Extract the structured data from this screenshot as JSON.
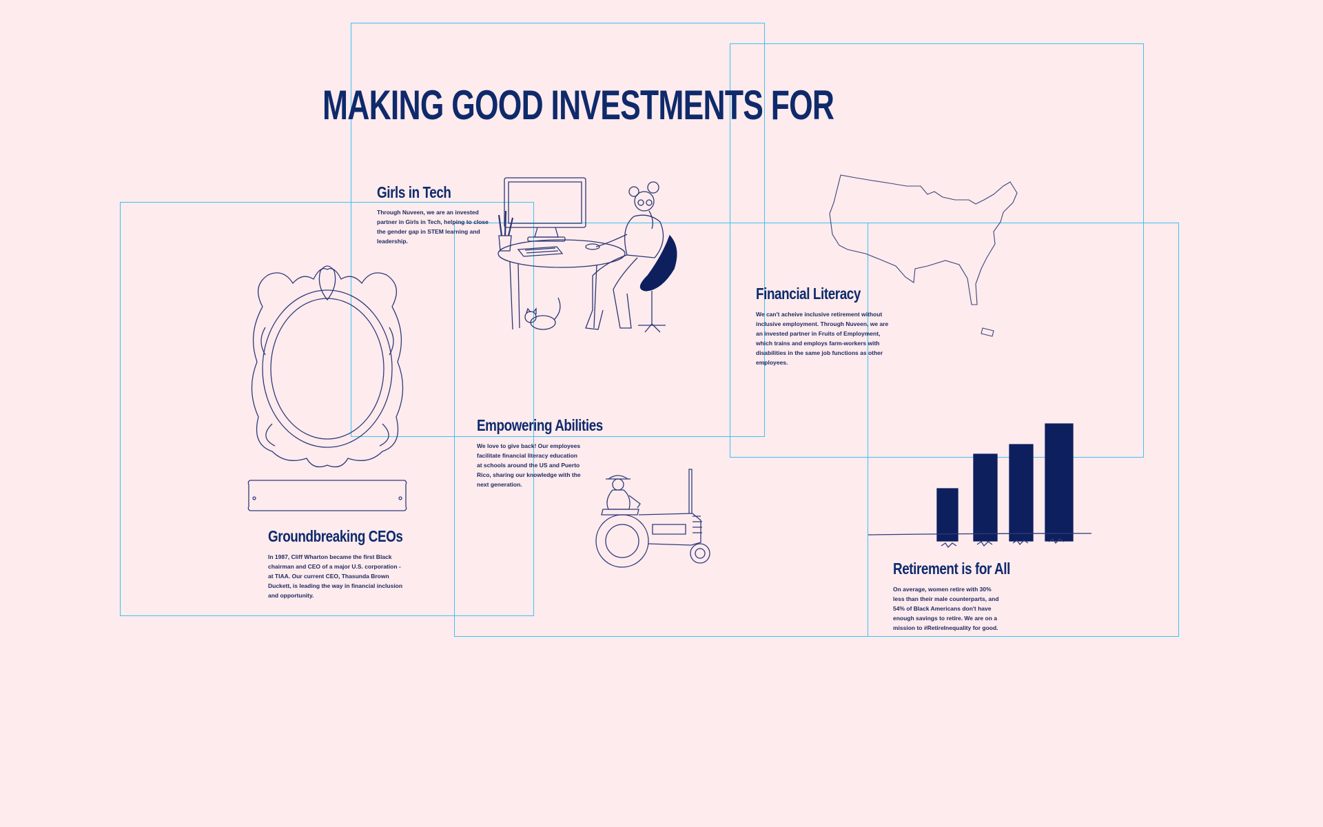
{
  "headline": "MAKING GOOD INVESTMENTS FOR",
  "colors": {
    "background": "#fdebee",
    "navy": "#0e1f5e",
    "guide": "#3fc1ef"
  },
  "cards": {
    "girls_in_tech": {
      "title": "Girls in Tech",
      "body": "Through Nuveen, we are an invested partner in Girls in Tech, helping to close the gender gap in STEM learning and leadership.",
      "icon": "girl-at-computer-illustration"
    },
    "financial_literacy": {
      "title": "Financial Literacy",
      "body": "We can't acheive inclusive retirement without inclusive employment. Through Nuveen, we are an invested partner in Fruits of Employment, which trains and employs farm-workers with disabilities in the same job functions as other employees.",
      "icon": "us-map-illustration"
    },
    "empowering_abilities": {
      "title": "Empowering Abilities",
      "body": "We love to give back! Our employees facilitate financial literacy education at schools around the US and Puerto Rico, sharing our knowledge with the next generation.",
      "icon": "farmer-on-tractor-illustration"
    },
    "groundbreaking_ceos": {
      "title": "Groundbreaking CEOs",
      "body": "In 1987, Cliff Wharton became the first Black chairman and CEO of a major U.S. corporation - at TIAA. Our current CEO, Thasunda Brown Duckett, is leading the way in financial inclusion and opportunity.",
      "icon": "ornate-frame-illustration"
    },
    "retirement_for_all": {
      "title": "Retirement is for All",
      "body": "On average, women retire with 30% less than their male counterparts, and 54% of Black Americans don't have enough savings to retire. We are on a mission to #RetireInequality for good.",
      "icon": "bar-chart-illustration"
    }
  }
}
